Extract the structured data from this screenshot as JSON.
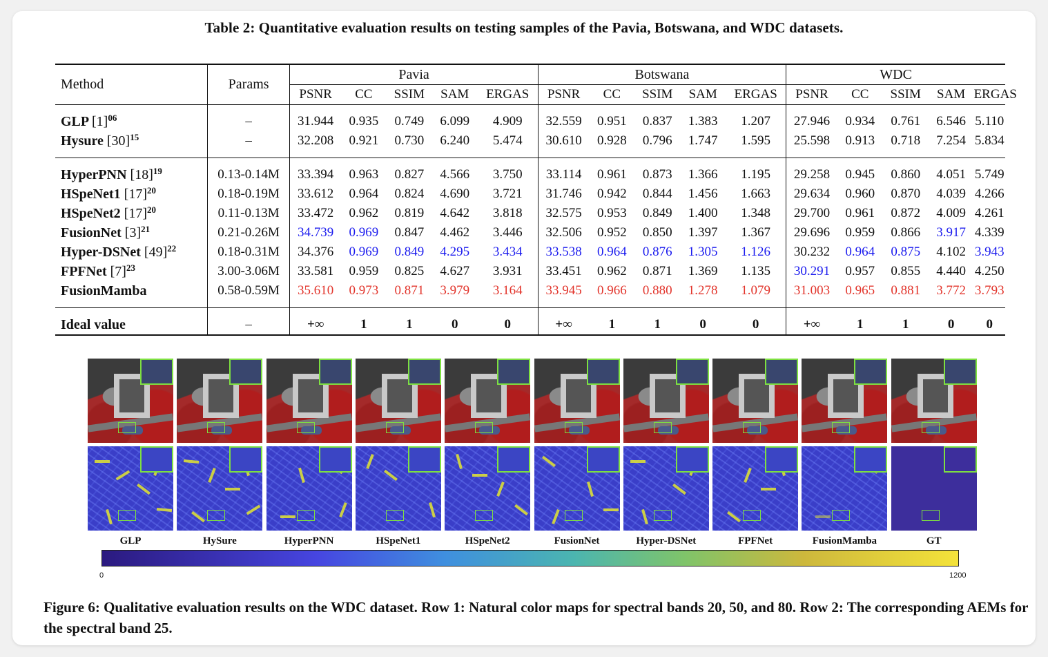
{
  "table": {
    "caption": "Table 2: Quantitative evaluation results on testing samples of the Pavia, Botswana, and WDC datasets.",
    "col_method": "Method",
    "col_params": "Params",
    "datasets": [
      "Pavia",
      "Botswana",
      "WDC"
    ],
    "metrics": [
      "PSNR",
      "CC",
      "SSIM",
      "SAM",
      "ERGAS"
    ],
    "groups": [
      [
        {
          "name": "GLP",
          "ref": "[1]",
          "sup": "06",
          "params": "–",
          "vals": [
            "31.944",
            "0.935",
            "0.749",
            "6.099",
            "4.909",
            "32.559",
            "0.951",
            "0.837",
            "1.383",
            "1.207",
            "27.946",
            "0.934",
            "0.761",
            "6.546",
            "5.110"
          ],
          "styles": [
            "",
            "",
            "",
            "",
            "",
            "",
            "",
            "",
            "",
            "",
            "",
            "",
            "",
            "",
            ""
          ]
        },
        {
          "name": "Hysure",
          "ref": "[30]",
          "sup": "15",
          "params": "–",
          "vals": [
            "32.208",
            "0.921",
            "0.730",
            "6.240",
            "5.474",
            "30.610",
            "0.928",
            "0.796",
            "1.747",
            "1.595",
            "25.598",
            "0.913",
            "0.718",
            "7.254",
            "5.834"
          ],
          "styles": [
            "",
            "",
            "",
            "",
            "",
            "",
            "",
            "",
            "",
            "",
            "",
            "",
            "",
            "",
            ""
          ]
        }
      ],
      [
        {
          "name": "HyperPNN",
          "ref": "[18]",
          "sup": "19",
          "params": "0.13-0.14M",
          "vals": [
            "33.394",
            "0.963",
            "0.827",
            "4.566",
            "3.750",
            "33.114",
            "0.961",
            "0.873",
            "1.366",
            "1.195",
            "29.258",
            "0.945",
            "0.860",
            "4.051",
            "5.749"
          ],
          "styles": [
            "",
            "",
            "",
            "",
            "",
            "",
            "",
            "",
            "",
            "",
            "",
            "",
            "",
            "",
            ""
          ]
        },
        {
          "name": "HSpeNet1",
          "ref": "[17]",
          "sup": "20",
          "params": "0.18-0.19M",
          "vals": [
            "33.612",
            "0.964",
            "0.824",
            "4.690",
            "3.721",
            "31.746",
            "0.942",
            "0.844",
            "1.456",
            "1.663",
            "29.634",
            "0.960",
            "0.870",
            "4.039",
            "4.266"
          ],
          "styles": [
            "",
            "",
            "",
            "",
            "",
            "",
            "",
            "",
            "",
            "",
            "",
            "",
            "",
            "",
            ""
          ]
        },
        {
          "name": "HSpeNet2",
          "ref": "[17]",
          "sup": "20",
          "params": "0.11-0.13M",
          "vals": [
            "33.472",
            "0.962",
            "0.819",
            "4.642",
            "3.818",
            "32.575",
            "0.953",
            "0.849",
            "1.400",
            "1.348",
            "29.700",
            "0.961",
            "0.872",
            "4.009",
            "4.261"
          ],
          "styles": [
            "",
            "",
            "",
            "",
            "",
            "",
            "",
            "",
            "",
            "",
            "",
            "",
            "",
            "",
            ""
          ]
        },
        {
          "name": "FusionNet",
          "ref": "[3]",
          "sup": "21",
          "params": "0.21-0.26M",
          "vals": [
            "34.739",
            "0.969",
            "0.847",
            "4.462",
            "3.446",
            "32.506",
            "0.952",
            "0.850",
            "1.397",
            "1.367",
            "29.696",
            "0.959",
            "0.866",
            "3.917",
            "4.339"
          ],
          "styles": [
            "blue",
            "blue",
            "",
            "",
            "",
            "",
            "",
            "",
            "",
            "",
            "",
            "",
            "",
            "blue",
            ""
          ]
        },
        {
          "name": "Hyper-DSNet",
          "ref": "[49]",
          "sup": "22",
          "params": "0.18-0.31M",
          "vals": [
            "34.376",
            "0.969",
            "0.849",
            "4.295",
            "3.434",
            "33.538",
            "0.964",
            "0.876",
            "1.305",
            "1.126",
            "30.232",
            "0.964",
            "0.875",
            "4.102",
            "3.943"
          ],
          "styles": [
            "",
            "blue",
            "blue",
            "blue",
            "blue",
            "blue",
            "blue",
            "blue",
            "blue",
            "blue",
            "",
            "blue",
            "blue",
            "",
            "blue"
          ]
        },
        {
          "name": "FPFNet",
          "ref": "[7]",
          "sup": "23",
          "params": "3.00-3.06M",
          "vals": [
            "33.581",
            "0.959",
            "0.825",
            "4.627",
            "3.931",
            "33.451",
            "0.962",
            "0.871",
            "1.369",
            "1.135",
            "30.291",
            "0.957",
            "0.855",
            "4.440",
            "4.250"
          ],
          "styles": [
            "",
            "",
            "",
            "",
            "",
            "",
            "",
            "",
            "",
            "",
            "blue",
            "",
            "",
            "",
            ""
          ]
        },
        {
          "name": "FusionMamba",
          "ref": "",
          "sup": "",
          "params": "0.58-0.59M",
          "vals": [
            "35.610",
            "0.973",
            "0.871",
            "3.979",
            "3.164",
            "33.945",
            "0.966",
            "0.880",
            "1.278",
            "1.079",
            "31.003",
            "0.965",
            "0.881",
            "3.772",
            "3.793"
          ],
          "styles": [
            "red",
            "red",
            "red",
            "red",
            "red",
            "red",
            "red",
            "red",
            "red",
            "red",
            "red",
            "red",
            "red",
            "red",
            "red"
          ]
        }
      ]
    ],
    "ideal": {
      "name": "Ideal value",
      "params": "–",
      "vals": [
        "+∞",
        "1",
        "1",
        "0",
        "0",
        "+∞",
        "1",
        "1",
        "0",
        "0",
        "+∞",
        "1",
        "1",
        "0",
        "0"
      ]
    }
  },
  "figure": {
    "labels": [
      "GLP",
      "HySure",
      "HyperPNN",
      "HSpeNet1",
      "HSpeNet2",
      "FusionNet",
      "Hyper-DSNet",
      "FPFNet",
      "FusionMamba",
      "GT"
    ],
    "colorbar": {
      "min": "0",
      "max": "1200"
    },
    "caption": "Figure 6: Qualitative evaluation results on the WDC dataset. Row 1: Natural color maps for spectral bands 20, 50, and 80. Row 2: The corresponding AEMs for the spectral band 25.",
    "colors": {
      "zoom_box": "#7ee040",
      "best": "#e2342b",
      "second": "#1a1aee"
    }
  }
}
